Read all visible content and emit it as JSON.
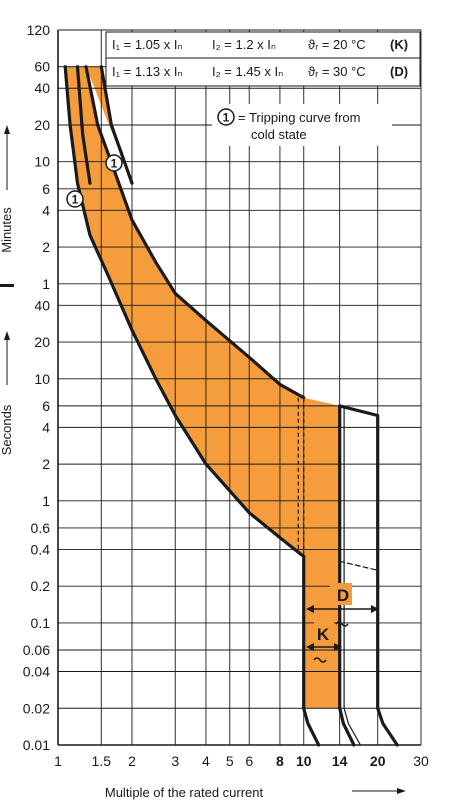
{
  "chart_data": {
    "type": "area",
    "title": "",
    "xlabel": "Multiple of the rated current",
    "ylabel_minutes": "Minutes",
    "ylabel_seconds": "Seconds",
    "x_scale": "log",
    "y_scale": "log",
    "xlim": [
      1,
      30
    ],
    "ylim_seconds": [
      0.01,
      7200
    ],
    "grid": true,
    "x_ticks": [
      {
        "value": 1,
        "label": "1",
        "bold": false
      },
      {
        "value": 1.5,
        "label": "1.5",
        "bold": false
      },
      {
        "value": 2,
        "label": "2",
        "bold": false
      },
      {
        "value": 3,
        "label": "3",
        "bold": false
      },
      {
        "value": 4,
        "label": "4",
        "bold": false
      },
      {
        "value": 5,
        "label": "5",
        "bold": false
      },
      {
        "value": 6,
        "label": "6",
        "bold": false
      },
      {
        "value": 8,
        "label": "8",
        "bold": true
      },
      {
        "value": 10,
        "label": "10",
        "bold": true
      },
      {
        "value": 14,
        "label": "14",
        "bold": true
      },
      {
        "value": 20,
        "label": "20",
        "bold": true
      },
      {
        "value": 30,
        "label": "30",
        "bold": false
      }
    ],
    "y_ticks": [
      {
        "seconds": 7200,
        "label": "120"
      },
      {
        "seconds": 3600,
        "label": "60"
      },
      {
        "seconds": 2400,
        "label": "40"
      },
      {
        "seconds": 1200,
        "label": "20"
      },
      {
        "seconds": 600,
        "label": "10"
      },
      {
        "seconds": 360,
        "label": "6"
      },
      {
        "seconds": 240,
        "label": "4"
      },
      {
        "seconds": 120,
        "label": "2"
      },
      {
        "seconds": 60,
        "label": "1"
      },
      {
        "seconds": 40,
        "label": "40"
      },
      {
        "seconds": 20,
        "label": "20"
      },
      {
        "seconds": 10,
        "label": "10"
      },
      {
        "seconds": 6,
        "label": "6"
      },
      {
        "seconds": 4,
        "label": "4"
      },
      {
        "seconds": 2,
        "label": "2"
      },
      {
        "seconds": 1,
        "label": "1"
      },
      {
        "seconds": 0.6,
        "label": "0.6"
      },
      {
        "seconds": 0.4,
        "label": "0.4"
      },
      {
        "seconds": 0.2,
        "label": "0.2"
      },
      {
        "seconds": 0.1,
        "label": "0.1"
      },
      {
        "seconds": 0.06,
        "label": "0.06"
      },
      {
        "seconds": 0.04,
        "label": "0.04"
      },
      {
        "seconds": 0.02,
        "label": "0.02"
      },
      {
        "seconds": 0.01,
        "label": "0.01"
      }
    ],
    "legend": {
      "rows": [
        {
          "i1": "I₁ = 1.05 x Iₙ",
          "i2": "I₂ = 1.2 x Iₙ",
          "temp": "ϑᵣ = 20 °C",
          "code": "(K)"
        },
        {
          "i1": "I₁ = 1.13 x Iₙ",
          "i2": "I₂ = 1.45 x Iₙ",
          "temp": "ϑᵣ = 30 °C",
          "code": "(D)"
        }
      ],
      "note_marker": "1",
      "note_line1": "= Tripping curve from",
      "note_line2": "cold state"
    },
    "annotations": {
      "label_K": "K",
      "label_D": "D",
      "curve_marker": "1"
    },
    "series": [
      {
        "name": "K",
        "lower_boundary": [
          [
            1.07,
            3600
          ],
          [
            1.12,
            1200
          ],
          [
            1.2,
            400
          ],
          [
            1.35,
            150
          ],
          [
            1.6,
            70
          ],
          [
            2.0,
            25
          ],
          [
            2.5,
            10
          ],
          [
            3.0,
            5
          ],
          [
            4.0,
            2
          ],
          [
            6.0,
            0.8
          ],
          [
            8.0,
            0.5
          ],
          [
            10.0,
            0.35
          ]
        ],
        "upper_boundary": [
          [
            1.3,
            3600
          ],
          [
            1.45,
            1200
          ],
          [
            1.7,
            500
          ],
          [
            2.0,
            200
          ],
          [
            2.5,
            90
          ],
          [
            3.0,
            50
          ],
          [
            4.0,
            30
          ],
          [
            6.0,
            15
          ],
          [
            8.0,
            9
          ],
          [
            10.0,
            7
          ]
        ],
        "magnetic_lower": [
          [
            10,
            0.35
          ],
          [
            10,
            0.02
          ],
          [
            10.4,
            0.015
          ],
          [
            11.5,
            0.01
          ]
        ],
        "magnetic_upper": [
          [
            14,
            6
          ],
          [
            14,
            0.02
          ],
          [
            14.5,
            0.015
          ],
          [
            16,
            0.01
          ]
        ]
      },
      {
        "name": "D",
        "lower_boundary": [
          [
            1.2,
            3600
          ]
        ],
        "upper_boundary": [
          [
            1.5,
            3600
          ],
          [
            1.65,
            1200
          ],
          [
            2.0,
            400
          ]
        ],
        "magnetic_lower": [
          [
            14,
            0.32
          ],
          [
            20,
            0.27
          ]
        ],
        "magnetic_upper": [
          [
            14,
            6
          ],
          [
            20,
            5
          ],
          [
            20,
            0.02
          ],
          [
            21,
            0.015
          ],
          [
            24,
            0.01
          ]
        ]
      }
    ],
    "colors": {
      "fill": "#f59c3c",
      "line": "#1a1a1a"
    }
  }
}
